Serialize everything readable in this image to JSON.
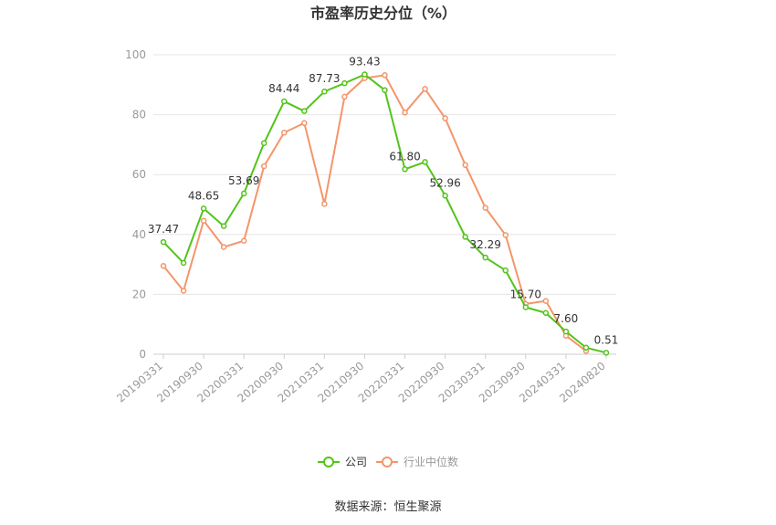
{
  "chart_data": {
    "type": "line",
    "title": "市盈率历史分位（%）",
    "x": [
      "20190331",
      "20190630",
      "20190930",
      "20191231",
      "20200331",
      "20200630",
      "20200930",
      "20201231",
      "20210331",
      "20210630",
      "20210930",
      "20211231",
      "20220331",
      "20220630",
      "20220930",
      "20221231",
      "20230331",
      "20230630",
      "20230930",
      "20231231",
      "20240331",
      "20240630",
      "20240820"
    ],
    "x_tick_labels": [
      "20190331",
      "20190930",
      "20200331",
      "20200930",
      "20210331",
      "20210930",
      "20220331",
      "20220930",
      "20230331",
      "20230930",
      "20240331",
      "20240820"
    ],
    "ylim": [
      0,
      100
    ],
    "yticks": [
      0,
      20,
      40,
      60,
      80,
      100
    ],
    "grid": true,
    "legend_position": "bottom",
    "series": [
      {
        "name": "公司",
        "color": "#52c41a",
        "values": [
          37.47,
          30.5,
          48.65,
          42.8,
          53.69,
          70.5,
          84.44,
          81.2,
          87.73,
          90.5,
          93.43,
          88.2,
          61.8,
          64.2,
          52.96,
          39.2,
          32.29,
          28.0,
          15.7,
          13.8,
          7.6,
          2.2,
          0.51
        ],
        "labels": {
          "0": "37.47",
          "2": "48.65",
          "4": "53.69",
          "6": "84.44",
          "8": "87.73",
          "10": "93.43",
          "12": "61.80",
          "14": "52.96",
          "16": "32.29",
          "18": "15.70",
          "20": "7.60",
          "22": "0.51"
        }
      },
      {
        "name": "行业中位数",
        "color": "#f4956a",
        "values": [
          29.5,
          21.2,
          44.6,
          35.8,
          37.9,
          62.8,
          74.0,
          77.2,
          50.2,
          86.0,
          92.2,
          93.2,
          80.7,
          88.6,
          78.8,
          63.2,
          48.9,
          39.8,
          16.8,
          17.8,
          6.2,
          1.1,
          null
        ]
      }
    ]
  },
  "source": "数据来源：恒生聚源"
}
